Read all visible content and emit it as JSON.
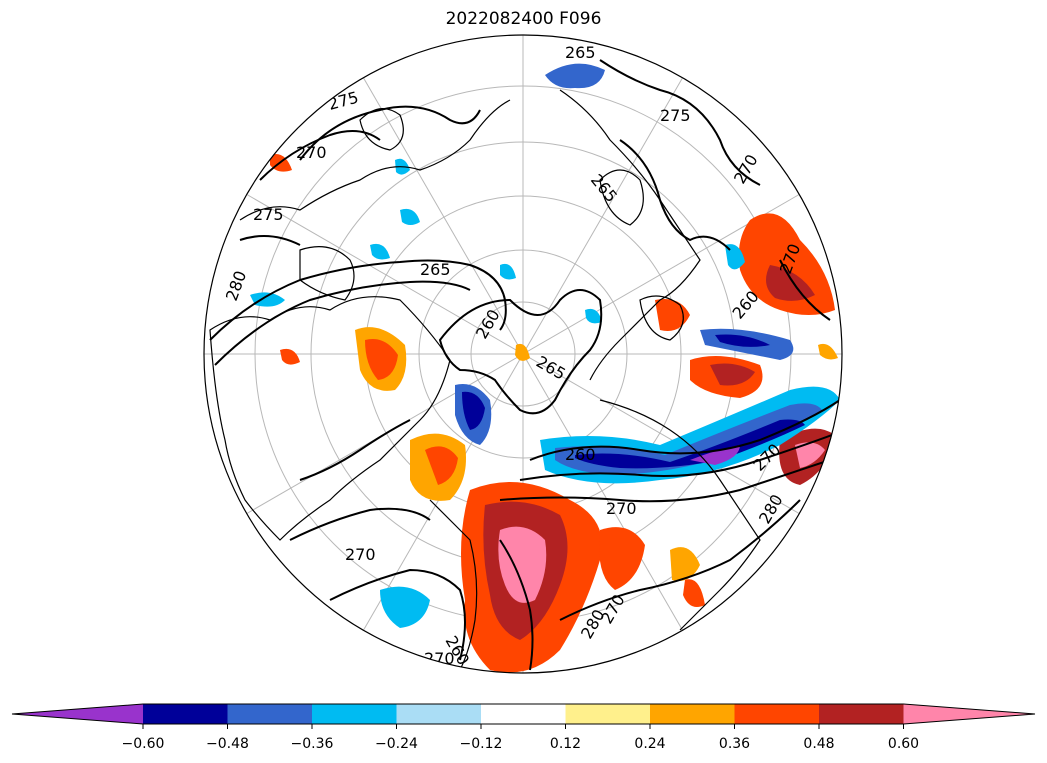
{
  "title": "2022082400 F096",
  "contour_labels": [
    "265",
    "275",
    "270",
    "275",
    "275",
    "270",
    "265",
    "265",
    "260",
    "265",
    "260",
    "270",
    "270",
    "270",
    "260",
    "280",
    "280",
    "270",
    "280",
    "260",
    "270",
    "270"
  ],
  "colorbar": {
    "colors": [
      "#9933cc",
      "#000099",
      "#3366cc",
      "#00bbf2",
      "#aaddf5",
      "#ffffff",
      "#fff08c",
      "#ffa500",
      "#ff4500",
      "#b22222",
      "#ff85aa"
    ],
    "tick_labels": [
      "−0.60",
      "−0.48",
      "−0.36",
      "−0.24",
      "−0.12",
      "0.12",
      "0.24",
      "0.36",
      "0.48",
      "0.60"
    ]
  }
}
